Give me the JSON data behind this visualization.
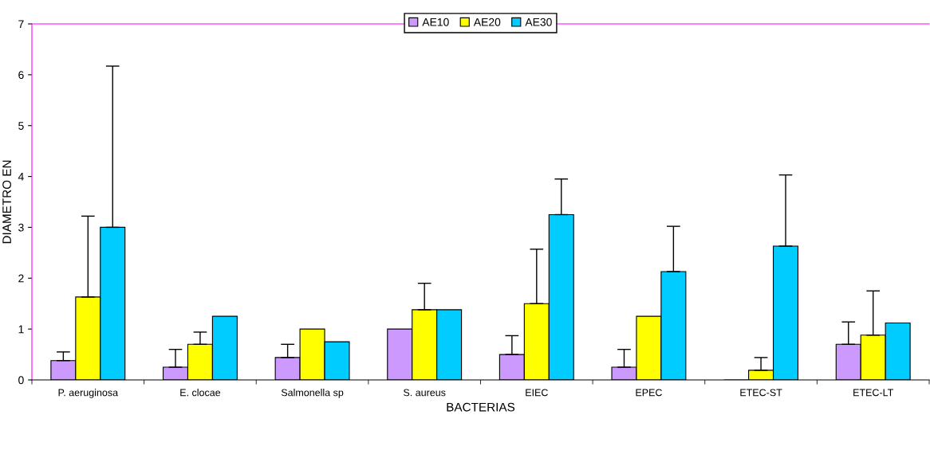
{
  "chart_data": {
    "type": "bar",
    "xlabel": "BACTERIAS",
    "ylabel": "DIAMETRO EN",
    "categories": [
      "P. aeruginosa",
      "E. clocae",
      "Salmonella sp",
      "S. aureus",
      "EIEC",
      "EPEC",
      "ETEC-ST",
      "ETEC-LT"
    ],
    "series": [
      {
        "name": "AE10",
        "color": "#cc99ff",
        "values": [
          0.38,
          0.25,
          0.44,
          1.0,
          0.5,
          0.25,
          0,
          0.7
        ],
        "errors": [
          [
            0.38,
            0.55
          ],
          [
            0.25,
            0.6
          ],
          [
            0.44,
            0.7
          ],
          null,
          [
            0.5,
            0.87
          ],
          [
            0.25,
            0.6
          ],
          null,
          [
            0.7,
            1.14
          ]
        ]
      },
      {
        "name": "AE20",
        "color": "#ffff00",
        "values": [
          1.63,
          0.7,
          1.0,
          1.38,
          1.5,
          1.25,
          0.19,
          0.88
        ],
        "errors": [
          [
            1.63,
            3.22
          ],
          [
            0.7,
            0.94
          ],
          null,
          [
            1.38,
            1.9
          ],
          [
            1.5,
            2.57
          ],
          null,
          [
            0.19,
            0.44
          ],
          [
            0.88,
            1.75
          ]
        ]
      },
      {
        "name": "AE30",
        "color": "#00ccff",
        "values": [
          3.0,
          1.25,
          0.75,
          1.38,
          3.25,
          2.13,
          2.63,
          1.12
        ],
        "errors": [
          [
            3.0,
            6.17
          ],
          null,
          null,
          null,
          [
            3.25,
            3.95
          ],
          [
            2.13,
            3.02
          ],
          [
            2.63,
            4.03
          ],
          null
        ]
      }
    ],
    "ylim": [
      0,
      7
    ],
    "yticks": [
      0,
      1,
      2,
      3,
      4,
      5,
      6,
      7
    ],
    "grid": false,
    "legend": "top"
  }
}
